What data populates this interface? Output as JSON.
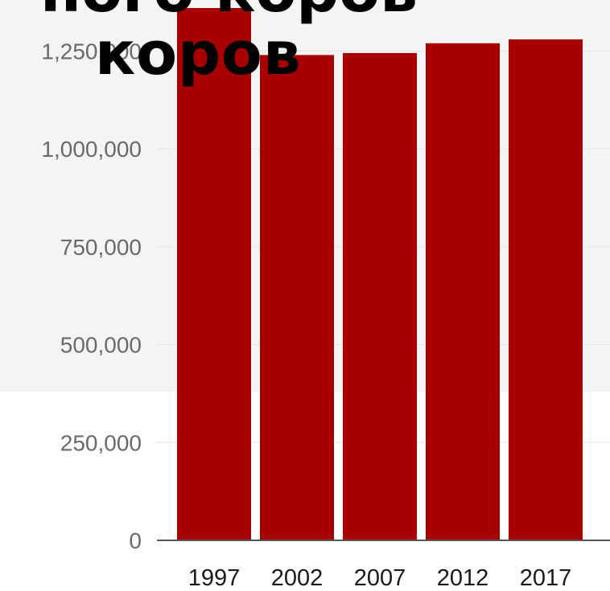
{
  "chart_data": {
    "type": "bar",
    "title": "коров",
    "title_clipped": "пого коров",
    "categories": [
      "1997",
      "2002",
      "2007",
      "2012",
      "2017"
    ],
    "values": [
      1360000,
      1240000,
      1245000,
      1270000,
      1280000
    ],
    "ylim": [
      0,
      1360000
    ],
    "yticks": [
      0,
      250000,
      500000,
      750000,
      1000000,
      1250000
    ],
    "ytick_labels": [
      "0",
      "250,000",
      "500,000",
      "750,000",
      "1,000,000",
      "1,250,000"
    ],
    "bar_color": "#a80000",
    "grid": true,
    "xlabel": "",
    "ylabel": ""
  }
}
